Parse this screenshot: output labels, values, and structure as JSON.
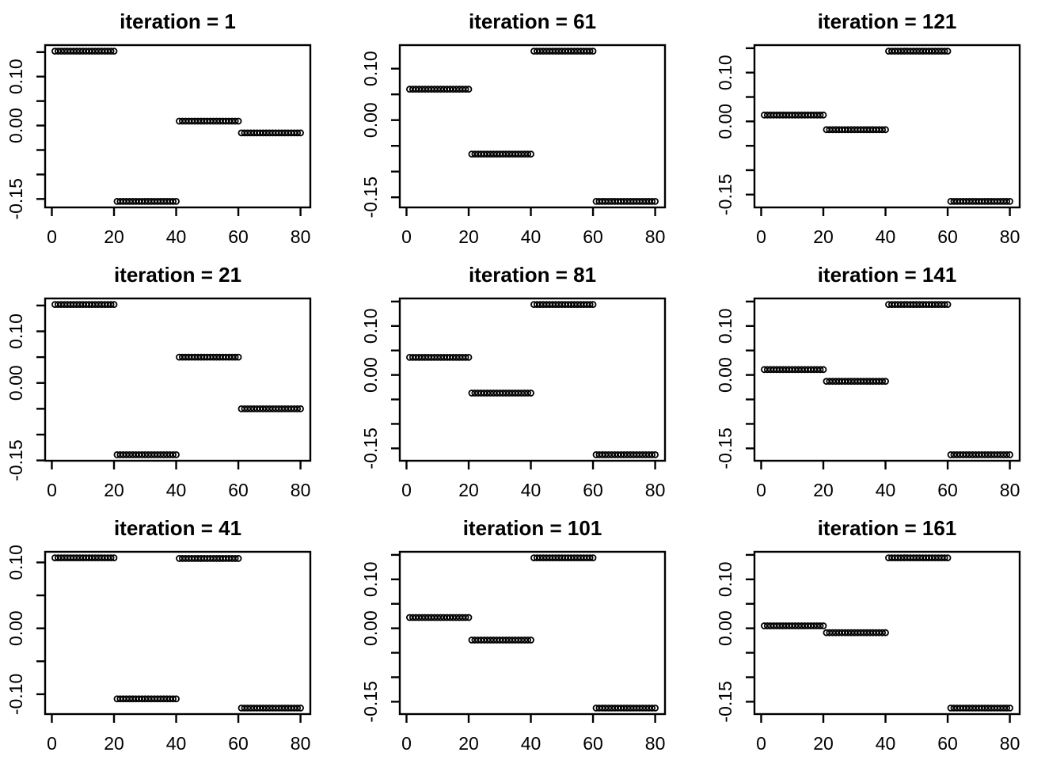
{
  "figure": {
    "background": "#ffffff",
    "foreground": "#000000",
    "grid_rows": 3,
    "grid_cols": 3,
    "panel_order_row_major": [
      "iteration = 1",
      "iteration = 61",
      "iteration = 121",
      "iteration = 21",
      "iteration = 81",
      "iteration = 141",
      "iteration = 41",
      "iteration = 101",
      "iteration = 161"
    ]
  },
  "chart_data": [
    {
      "type": "scatter",
      "title": "iteration = 1",
      "marker": "open-circle",
      "color": "#000000",
      "xlabel": "",
      "ylabel": "",
      "x_range": [
        1,
        80
      ],
      "x_ticks": [
        0,
        20,
        40,
        60,
        80
      ],
      "y_tick_step": 0.05,
      "y_labeled_ticks": [
        "-0.15",
        "0.00",
        "0.10"
      ],
      "points_per_segment": 20,
      "segments": [
        {
          "x_start": 1,
          "x_end": 20,
          "y": 0.152
        },
        {
          "x_start": 21,
          "x_end": 40,
          "y": -0.155
        },
        {
          "x_start": 41,
          "x_end": 60,
          "y": 0.009
        },
        {
          "x_start": 61,
          "x_end": 80,
          "y": -0.015
        }
      ]
    },
    {
      "type": "scatter",
      "title": "iteration = 61",
      "marker": "open-circle",
      "color": "#000000",
      "xlabel": "",
      "ylabel": "",
      "x_range": [
        1,
        80
      ],
      "x_ticks": [
        0,
        20,
        40,
        60,
        80
      ],
      "y_tick_step": 0.05,
      "y_labeled_ticks": [
        "-0.15",
        "0.00",
        "0.10"
      ],
      "points_per_segment": 20,
      "segments": [
        {
          "x_start": 1,
          "x_end": 20,
          "y": 0.06
        },
        {
          "x_start": 21,
          "x_end": 40,
          "y": -0.066
        },
        {
          "x_start": 41,
          "x_end": 60,
          "y": 0.134
        },
        {
          "x_start": 61,
          "x_end": 80,
          "y": -0.158
        }
      ]
    },
    {
      "type": "scatter",
      "title": "iteration = 121",
      "marker": "open-circle",
      "color": "#000000",
      "xlabel": "",
      "ylabel": "",
      "x_range": [
        1,
        80
      ],
      "x_ticks": [
        0,
        20,
        40,
        60,
        80
      ],
      "y_tick_step": 0.05,
      "y_labeled_ticks": [
        "-0.15",
        "0.00",
        "0.10"
      ],
      "points_per_segment": 20,
      "segments": [
        {
          "x_start": 1,
          "x_end": 20,
          "y": 0.013
        },
        {
          "x_start": 21,
          "x_end": 40,
          "y": -0.017
        },
        {
          "x_start": 41,
          "x_end": 60,
          "y": 0.144
        },
        {
          "x_start": 61,
          "x_end": 80,
          "y": -0.164
        }
      ]
    },
    {
      "type": "scatter",
      "title": "iteration = 21",
      "marker": "open-circle",
      "color": "#000000",
      "xlabel": "",
      "ylabel": "",
      "x_range": [
        1,
        80
      ],
      "x_ticks": [
        0,
        20,
        40,
        60,
        80
      ],
      "y_tick_step": 0.05,
      "y_labeled_ticks": [
        "-0.15",
        "0.00",
        "0.10"
      ],
      "points_per_segment": 20,
      "segments": [
        {
          "x_start": 1,
          "x_end": 20,
          "y": 0.152
        },
        {
          "x_start": 21,
          "x_end": 40,
          "y": -0.139
        },
        {
          "x_start": 41,
          "x_end": 60,
          "y": 0.05
        },
        {
          "x_start": 61,
          "x_end": 80,
          "y": -0.05
        }
      ]
    },
    {
      "type": "scatter",
      "title": "iteration = 81",
      "marker": "open-circle",
      "color": "#000000",
      "xlabel": "",
      "ylabel": "",
      "x_range": [
        1,
        80
      ],
      "x_ticks": [
        0,
        20,
        40,
        60,
        80
      ],
      "y_tick_step": 0.05,
      "y_labeled_ticks": [
        "-0.15",
        "0.00",
        "0.10"
      ],
      "points_per_segment": 20,
      "segments": [
        {
          "x_start": 1,
          "x_end": 20,
          "y": 0.036
        },
        {
          "x_start": 21,
          "x_end": 40,
          "y": -0.037
        },
        {
          "x_start": 41,
          "x_end": 60,
          "y": 0.144
        },
        {
          "x_start": 61,
          "x_end": 80,
          "y": -0.163
        }
      ]
    },
    {
      "type": "scatter",
      "title": "iteration = 141",
      "marker": "open-circle",
      "color": "#000000",
      "xlabel": "",
      "ylabel": "",
      "x_range": [
        1,
        80
      ],
      "x_ticks": [
        0,
        20,
        40,
        60,
        80
      ],
      "y_tick_step": 0.05,
      "y_labeled_ticks": [
        "-0.15",
        "0.00",
        "0.10"
      ],
      "points_per_segment": 20,
      "segments": [
        {
          "x_start": 1,
          "x_end": 20,
          "y": 0.011
        },
        {
          "x_start": 21,
          "x_end": 40,
          "y": -0.013
        },
        {
          "x_start": 41,
          "x_end": 60,
          "y": 0.144
        },
        {
          "x_start": 61,
          "x_end": 80,
          "y": -0.163
        }
      ]
    },
    {
      "type": "scatter",
      "title": "iteration = 41",
      "marker": "open-circle",
      "color": "#000000",
      "xlabel": "",
      "ylabel": "",
      "x_range": [
        1,
        80
      ],
      "x_ticks": [
        0,
        20,
        40,
        60,
        80
      ],
      "y_tick_step": 0.05,
      "y_labeled_ticks": [
        "-0.10",
        "0.00",
        "0.10"
      ],
      "points_per_segment": 20,
      "segments": [
        {
          "x_start": 1,
          "x_end": 20,
          "y": 0.107
        },
        {
          "x_start": 21,
          "x_end": 40,
          "y": -0.107
        },
        {
          "x_start": 41,
          "x_end": 60,
          "y": 0.106
        },
        {
          "x_start": 61,
          "x_end": 80,
          "y": -0.121
        }
      ]
    },
    {
      "type": "scatter",
      "title": "iteration = 101",
      "marker": "open-circle",
      "color": "#000000",
      "xlabel": "",
      "ylabel": "",
      "x_range": [
        1,
        80
      ],
      "x_ticks": [
        0,
        20,
        40,
        60,
        80
      ],
      "y_tick_step": 0.05,
      "y_labeled_ticks": [
        "-0.15",
        "0.00",
        "0.10"
      ],
      "points_per_segment": 20,
      "segments": [
        {
          "x_start": 1,
          "x_end": 20,
          "y": 0.022
        },
        {
          "x_start": 21,
          "x_end": 40,
          "y": -0.024
        },
        {
          "x_start": 41,
          "x_end": 60,
          "y": 0.144
        },
        {
          "x_start": 61,
          "x_end": 80,
          "y": -0.163
        }
      ]
    },
    {
      "type": "scatter",
      "title": "iteration = 161",
      "marker": "open-circle",
      "color": "#000000",
      "xlabel": "",
      "ylabel": "",
      "x_range": [
        1,
        80
      ],
      "x_ticks": [
        0,
        20,
        40,
        60,
        80
      ],
      "y_tick_step": 0.05,
      "y_labeled_ticks": [
        "-0.15",
        "0.00",
        "0.10"
      ],
      "points_per_segment": 20,
      "segments": [
        {
          "x_start": 1,
          "x_end": 20,
          "y": 0.005
        },
        {
          "x_start": 21,
          "x_end": 40,
          "y": -0.009
        },
        {
          "x_start": 41,
          "x_end": 60,
          "y": 0.144
        },
        {
          "x_start": 61,
          "x_end": 80,
          "y": -0.163
        }
      ]
    }
  ]
}
